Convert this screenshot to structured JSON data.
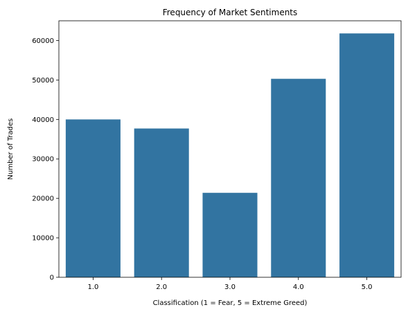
{
  "chart_data": {
    "type": "bar",
    "title": "Frequency of Market Sentiments",
    "xlabel": "Classification (1 = Fear, 5 = Extreme Greed)",
    "ylabel": "Number of Trades",
    "categories": [
      "1.0",
      "2.0",
      "3.0",
      "4.0",
      "5.0"
    ],
    "values": [
      40000,
      37700,
      21400,
      50300,
      61800
    ],
    "ylim": [
      0,
      65000
    ],
    "yticks": [
      0,
      10000,
      20000,
      30000,
      40000,
      50000,
      60000
    ],
    "grid": false,
    "legend": "none",
    "bar_color": "#3274a1"
  }
}
